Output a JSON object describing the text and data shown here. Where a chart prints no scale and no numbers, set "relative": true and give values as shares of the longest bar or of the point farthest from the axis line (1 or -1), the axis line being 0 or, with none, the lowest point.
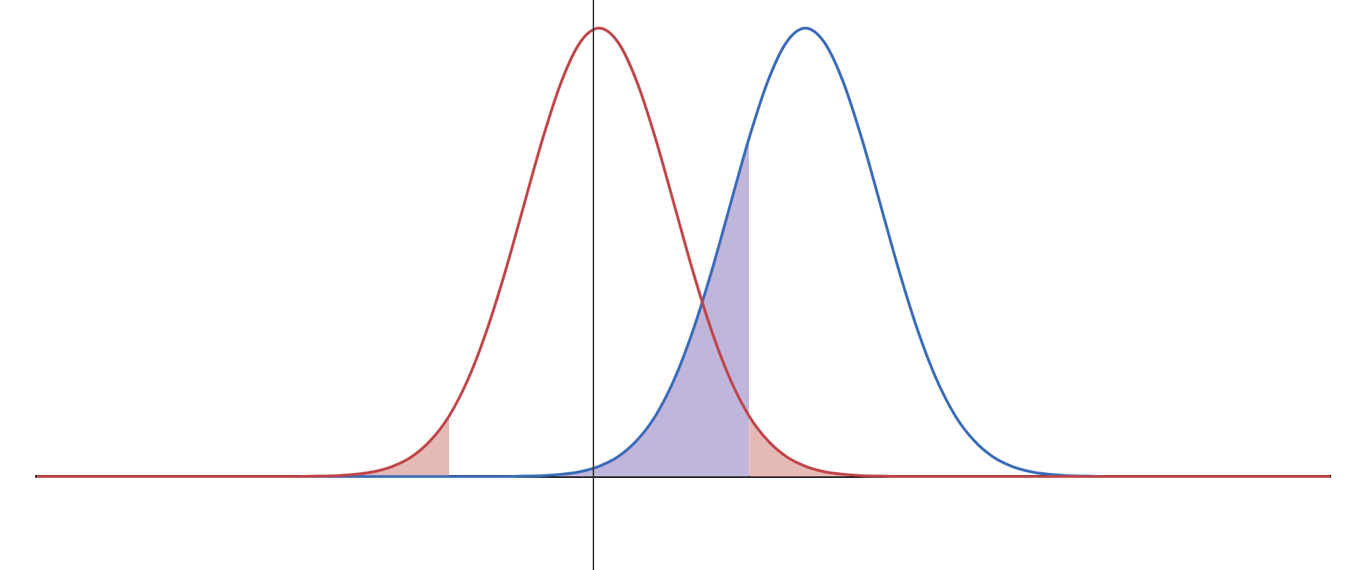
{
  "chart_data": {
    "type": "line",
    "relative": true,
    "legend": false,
    "marker": "none",
    "line_style": "solid",
    "categories": [
      null,
      null,
      null,
      null,
      null,
      null,
      null,
      null,
      null,
      null,
      null,
      null,
      null,
      null,
      null,
      null,
      null,
      null,
      null,
      null,
      null,
      null,
      null,
      null,
      null,
      null,
      null,
      null,
      null,
      null,
      null,
      null,
      null,
      null,
      null,
      null,
      null,
      null,
      null,
      null,
      null,
      null,
      null,
      null,
      null,
      null,
      null,
      null,
      null,
      null,
      null,
      null,
      null,
      null,
      null,
      null,
      null,
      null,
      null,
      null,
      null,
      null,
      null,
      null,
      null,
      null,
      null,
      null,
      null,
      null
    ],
    "series": [
      {
        "type": "area",
        "color": "#e4b9b6",
        "values": [
          0,
          0,
          0,
          0,
          0,
          0,
          0,
          0,
          0,
          0,
          0,
          0,
          0,
          0,
          0,
          0.001,
          0.002,
          0.005,
          0.011,
          0.023,
          0.044,
          0.08,
          0.135,
          null,
          null,
          null,
          null,
          null,
          null,
          null,
          null,
          null,
          null,
          null,
          null,
          null,
          null,
          null,
          null,
          null,
          null,
          null,
          null,
          null,
          null,
          null,
          null,
          null,
          null,
          null,
          null,
          null,
          null,
          null,
          null,
          null,
          null,
          null,
          null,
          null,
          null,
          null,
          null,
          null,
          null,
          null,
          null,
          null,
          null,
          null
        ]
      },
      {
        "type": "area",
        "color": "#e4b9b6",
        "values": [
          null,
          null,
          null,
          null,
          null,
          null,
          null,
          null,
          null,
          null,
          null,
          null,
          null,
          null,
          null,
          null,
          null,
          null,
          null,
          null,
          null,
          null,
          null,
          null,
          null,
          null,
          null,
          null,
          null,
          null,
          null,
          null,
          null,
          null,
          null,
          null,
          null,
          null,
          0.135,
          0.08,
          0.044,
          0.023,
          0.011,
          0.005,
          0.002,
          0.001,
          0,
          0,
          0,
          0,
          0,
          0,
          0,
          0,
          0,
          0,
          0,
          0,
          0,
          0,
          0,
          0,
          0,
          0,
          0,
          0,
          0,
          0,
          0,
          0
        ]
      },
      {
        "type": "area",
        "color": "#c0b5da",
        "values": [
          null,
          null,
          null,
          null,
          null,
          null,
          null,
          null,
          null,
          null,
          null,
          null,
          null,
          null,
          null,
          null,
          null,
          null,
          null,
          null,
          null,
          null,
          0,
          0,
          0,
          0,
          0.001,
          0.002,
          0.005,
          0.011,
          0.023,
          0.044,
          0.08,
          0.135,
          0.216,
          0.325,
          0.458,
          0.607,
          0.755,
          null,
          null,
          null,
          null,
          null,
          null,
          null,
          null,
          null,
          null,
          null,
          null,
          null,
          null,
          null,
          null,
          null,
          null,
          null,
          null,
          null,
          null,
          null,
          null,
          null,
          null,
          null,
          null,
          null,
          null,
          null
        ]
      },
      {
        "type": "line",
        "color": "#c0464a",
        "values": [
          0,
          0,
          0,
          0,
          0,
          0,
          0,
          0,
          0,
          0,
          0,
          0,
          0,
          0,
          0,
          0.001,
          0.002,
          0.005,
          0.011,
          0.023,
          0.044,
          0.08,
          0.135,
          0.216,
          0.325,
          0.458,
          0.607,
          0.755,
          0.882,
          0.969,
          1,
          0.969,
          0.882,
          0.755,
          0.607,
          0.458,
          0.325,
          0.216,
          0.135,
          0.08,
          0.044,
          0.023,
          0.011,
          0.005,
          0.002,
          0.001,
          0,
          0,
          0,
          0,
          0,
          0,
          0,
          0,
          0,
          0,
          0,
          0,
          0,
          0,
          0,
          0,
          0,
          0,
          0,
          0,
          0,
          0,
          0,
          0
        ]
      },
      {
        "type": "line",
        "color": "#3b6cb9",
        "values": [
          null,
          null,
          null,
          null,
          null,
          null,
          null,
          null,
          null,
          null,
          null,
          null,
          null,
          null,
          0,
          0,
          0,
          0,
          0,
          0,
          0,
          0,
          0,
          0,
          0,
          0,
          0.001,
          0.002,
          0.005,
          0.011,
          0.023,
          0.044,
          0.08,
          0.135,
          0.216,
          0.325,
          0.458,
          0.607,
          0.755,
          0.882,
          0.969,
          1,
          0.969,
          0.882,
          0.755,
          0.607,
          0.458,
          0.325,
          0.216,
          0.135,
          0.08,
          0.044,
          0.023,
          0.011,
          0.005,
          0.002,
          0.001,
          0,
          null,
          null,
          null,
          null,
          null,
          null,
          null,
          null,
          null,
          null,
          null,
          null
        ]
      }
    ]
  }
}
